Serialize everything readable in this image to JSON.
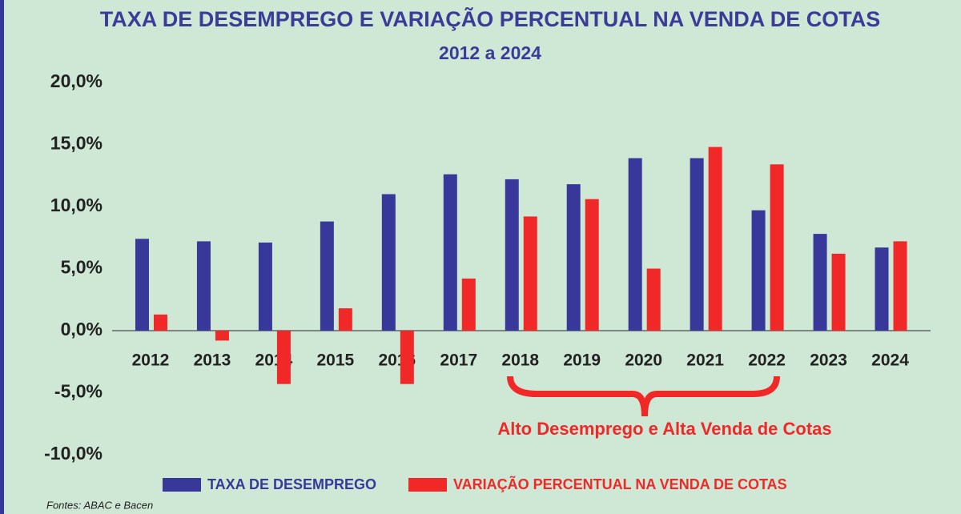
{
  "chart_data": {
    "type": "bar",
    "title": "TAXA DE DESEMPREGO E VARIAÇÃO PERCENTUAL NA VENDA DE COTAS",
    "subtitle": "2012 a 2024",
    "categories": [
      "2012",
      "2013",
      "2014",
      "2015",
      "2016",
      "2017",
      "2018",
      "2019",
      "2020",
      "2021",
      "2022",
      "2023",
      "2024"
    ],
    "series": [
      {
        "name": "TAXA DE DESEMPREGO",
        "color": "#38389a",
        "values": [
          7.4,
          7.2,
          7.1,
          8.8,
          11.0,
          12.6,
          12.2,
          11.8,
          13.9,
          13.9,
          9.7,
          7.8,
          6.7
        ]
      },
      {
        "name": "VARIAÇÃO PERCENTUAL NA VENDA DE COTAS",
        "color": "#f02828",
        "values": [
          1.3,
          -0.8,
          -4.3,
          1.8,
          -4.3,
          4.2,
          9.2,
          10.6,
          5.0,
          14.8,
          13.4,
          6.2,
          7.2
        ]
      }
    ],
    "ylim": [
      -10,
      20
    ],
    "yticks": [
      {
        "value": -10,
        "label": "-10,0%"
      },
      {
        "value": -5,
        "label": "-5,0%"
      },
      {
        "value": 0,
        "label": "0,0%"
      },
      {
        "value": 5,
        "label": "5,0%"
      },
      {
        "value": 10,
        "label": "10,0%"
      },
      {
        "value": 15,
        "label": "15,0%"
      },
      {
        "value": 20,
        "label": "20,0%"
      }
    ],
    "grid": false,
    "legend": "bottom",
    "annotation": "Alto Desemprego e Alta Venda de Cotas",
    "source": "Fontes: ABAC e Bacen"
  }
}
